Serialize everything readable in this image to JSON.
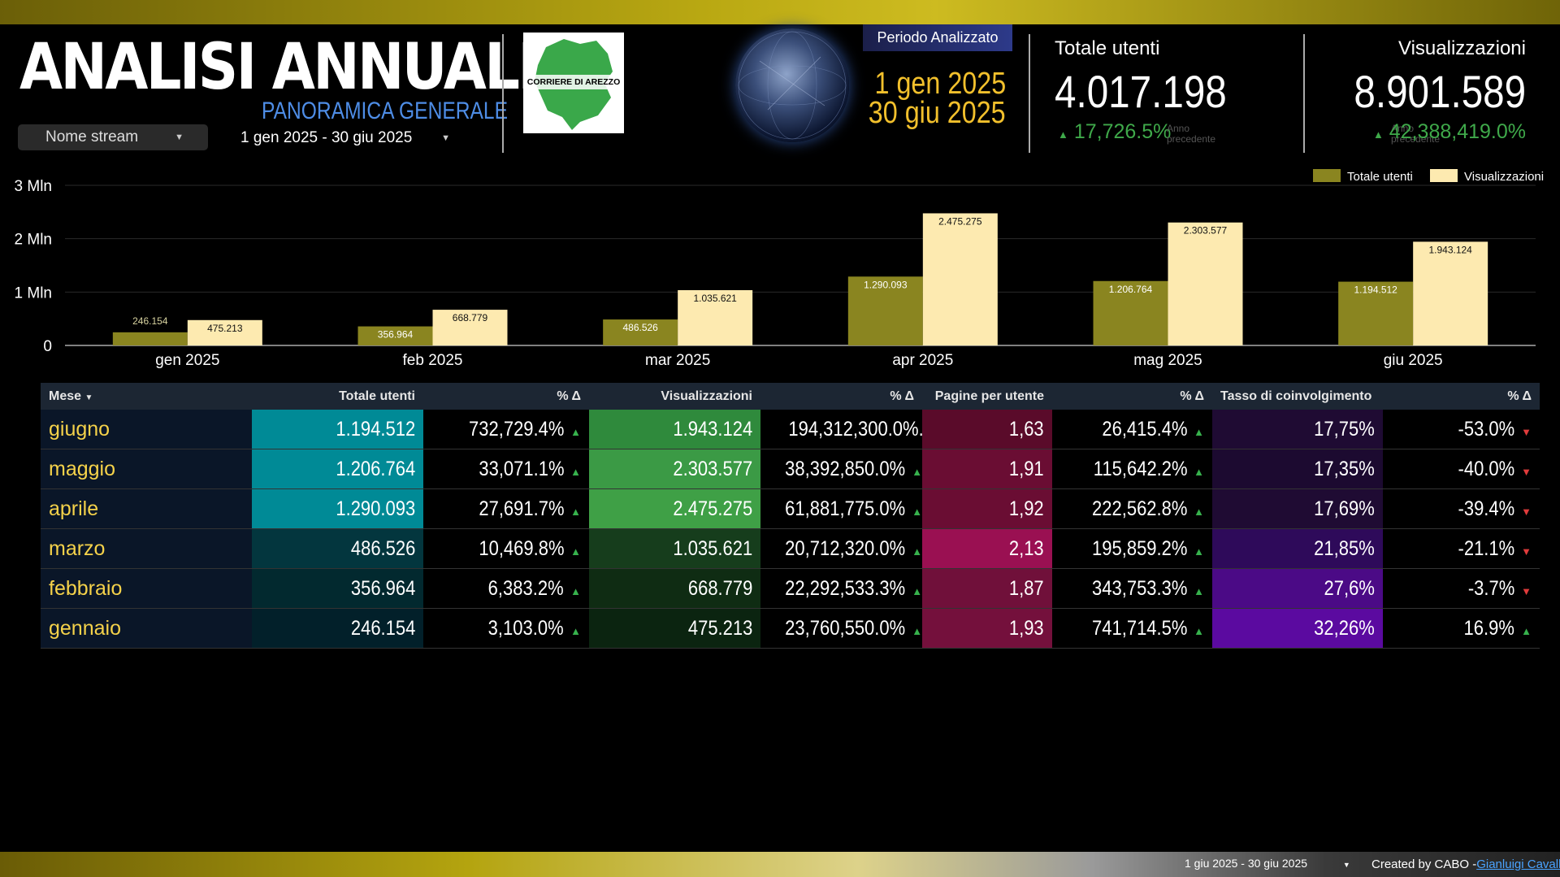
{
  "header": {
    "title": "ANALISI ANNUALE",
    "subtitle": "PANORAMICA GENERALE",
    "stream_select": "Nome stream",
    "date_range": "1 gen 2025 - 30 giu 2025",
    "logo_text": "CORRIERE DI AREZZO",
    "period_label": "Periodo Analizzato",
    "period_start": "1 gen 2025",
    "period_end": "30 giu 2025"
  },
  "kpis": [
    {
      "label": "Totale utenti",
      "value": "4.017.198",
      "delta": "17,726.5%",
      "sub": "Anno precedente"
    },
    {
      "label": "Visualizzazioni",
      "value": "8.901.589",
      "delta": "42,388,419.0%",
      "sub": "Anno precedente"
    }
  ],
  "chart_data": {
    "type": "bar",
    "categories": [
      "gen 2025",
      "feb 2025",
      "mar 2025",
      "apr 2025",
      "mag 2025",
      "giu 2025"
    ],
    "series": [
      {
        "name": "Totale utenti",
        "values": [
          246154,
          356964,
          486526,
          1290093,
          1206764,
          1194512
        ],
        "labels": [
          "246.154",
          "356.964",
          "486.526",
          "1.290.093",
          "1.206.764",
          "1.194.512"
        ],
        "color": "#8a8520"
      },
      {
        "name": "Visualizzazioni",
        "values": [
          475213,
          668779,
          1035621,
          2475275,
          2303577,
          1943124
        ],
        "labels": [
          "475.213",
          "668.779",
          "1.035.621",
          "2.475.275",
          "2.303.577",
          "1.943.124"
        ],
        "color": "#fdeab0"
      }
    ],
    "yticks": [
      "0",
      "1 Mln",
      "2 Mln",
      "3 Mln"
    ],
    "ylim": [
      0,
      3000000
    ],
    "legend": "top-right",
    "grid": true
  },
  "table": {
    "headers": [
      "Mese",
      "Totale utenti",
      "% Δ",
      "Visualizzazioni",
      "% Δ",
      "Pagine per utente",
      "% Δ",
      "Tasso di coinvolgimento",
      "% Δ"
    ],
    "rows": [
      {
        "mese": "giugno",
        "utenti": "1.194.512",
        "d1": "732,729.4%",
        "vis": "1.943.124",
        "d2": "194,312,300.0%...",
        "pag": "1,63",
        "d3": "26,415.4%",
        "tasso": "17,75%",
        "d4": "-53.0%",
        "d4dir": "down"
      },
      {
        "mese": "maggio",
        "utenti": "1.206.764",
        "d1": "33,071.1%",
        "vis": "2.303.577",
        "d2": "38,392,850.0%",
        "pag": "1,91",
        "d3": "115,642.2%",
        "tasso": "17,35%",
        "d4": "-40.0%",
        "d4dir": "down"
      },
      {
        "mese": "aprile",
        "utenti": "1.290.093",
        "d1": "27,691.7%",
        "vis": "2.475.275",
        "d2": "61,881,775.0%",
        "pag": "1,92",
        "d3": "222,562.8%",
        "tasso": "17,69%",
        "d4": "-39.4%",
        "d4dir": "down"
      },
      {
        "mese": "marzo",
        "utenti": "486.526",
        "d1": "10,469.8%",
        "vis": "1.035.621",
        "d2": "20,712,320.0%",
        "pag": "2,13",
        "d3": "195,859.2%",
        "tasso": "21,85%",
        "d4": "-21.1%",
        "d4dir": "down"
      },
      {
        "mese": "febbraio",
        "utenti": "356.964",
        "d1": "6,383.2%",
        "vis": "668.779",
        "d2": "22,292,533.3%",
        "pag": "1,87",
        "d3": "343,753.3%",
        "tasso": "27,6%",
        "d4": "-3.7%",
        "d4dir": "down"
      },
      {
        "mese": "gennaio",
        "utenti": "246.154",
        "d1": "3,103.0%",
        "vis": "475.213",
        "d2": "23,760,550.0%",
        "pag": "1,93",
        "d3": "741,714.5%",
        "tasso": "32,26%",
        "d4": "16.9%",
        "d4dir": "up"
      }
    ]
  },
  "colors": {
    "utenti_cells": [
      "#008a96",
      "#008a96",
      "#008a96",
      "#03363e",
      "#02292f",
      "#02202a"
    ],
    "vis_cells": [
      "#2f8a3c",
      "#3b9a45",
      "#3fa046",
      "#163d1c",
      "#0f2c13",
      "#0b2410"
    ],
    "pag_cells": [
      "#5a0b2a",
      "#6a0d33",
      "#6a0d33",
      "#9a1052",
      "#70103a",
      "#74103c"
    ],
    "tasso_cells": [
      "#1f0b33",
      "#1c0a30",
      "#1f0b33",
      "#2e0a5a",
      "#4b0a86",
      "#5b0aa0"
    ]
  },
  "footer": {
    "date_select": "1 giu 2025 - 30 giu 2025",
    "credit": "Created by CABO -",
    "author": "Gianluigi Cavallo"
  }
}
